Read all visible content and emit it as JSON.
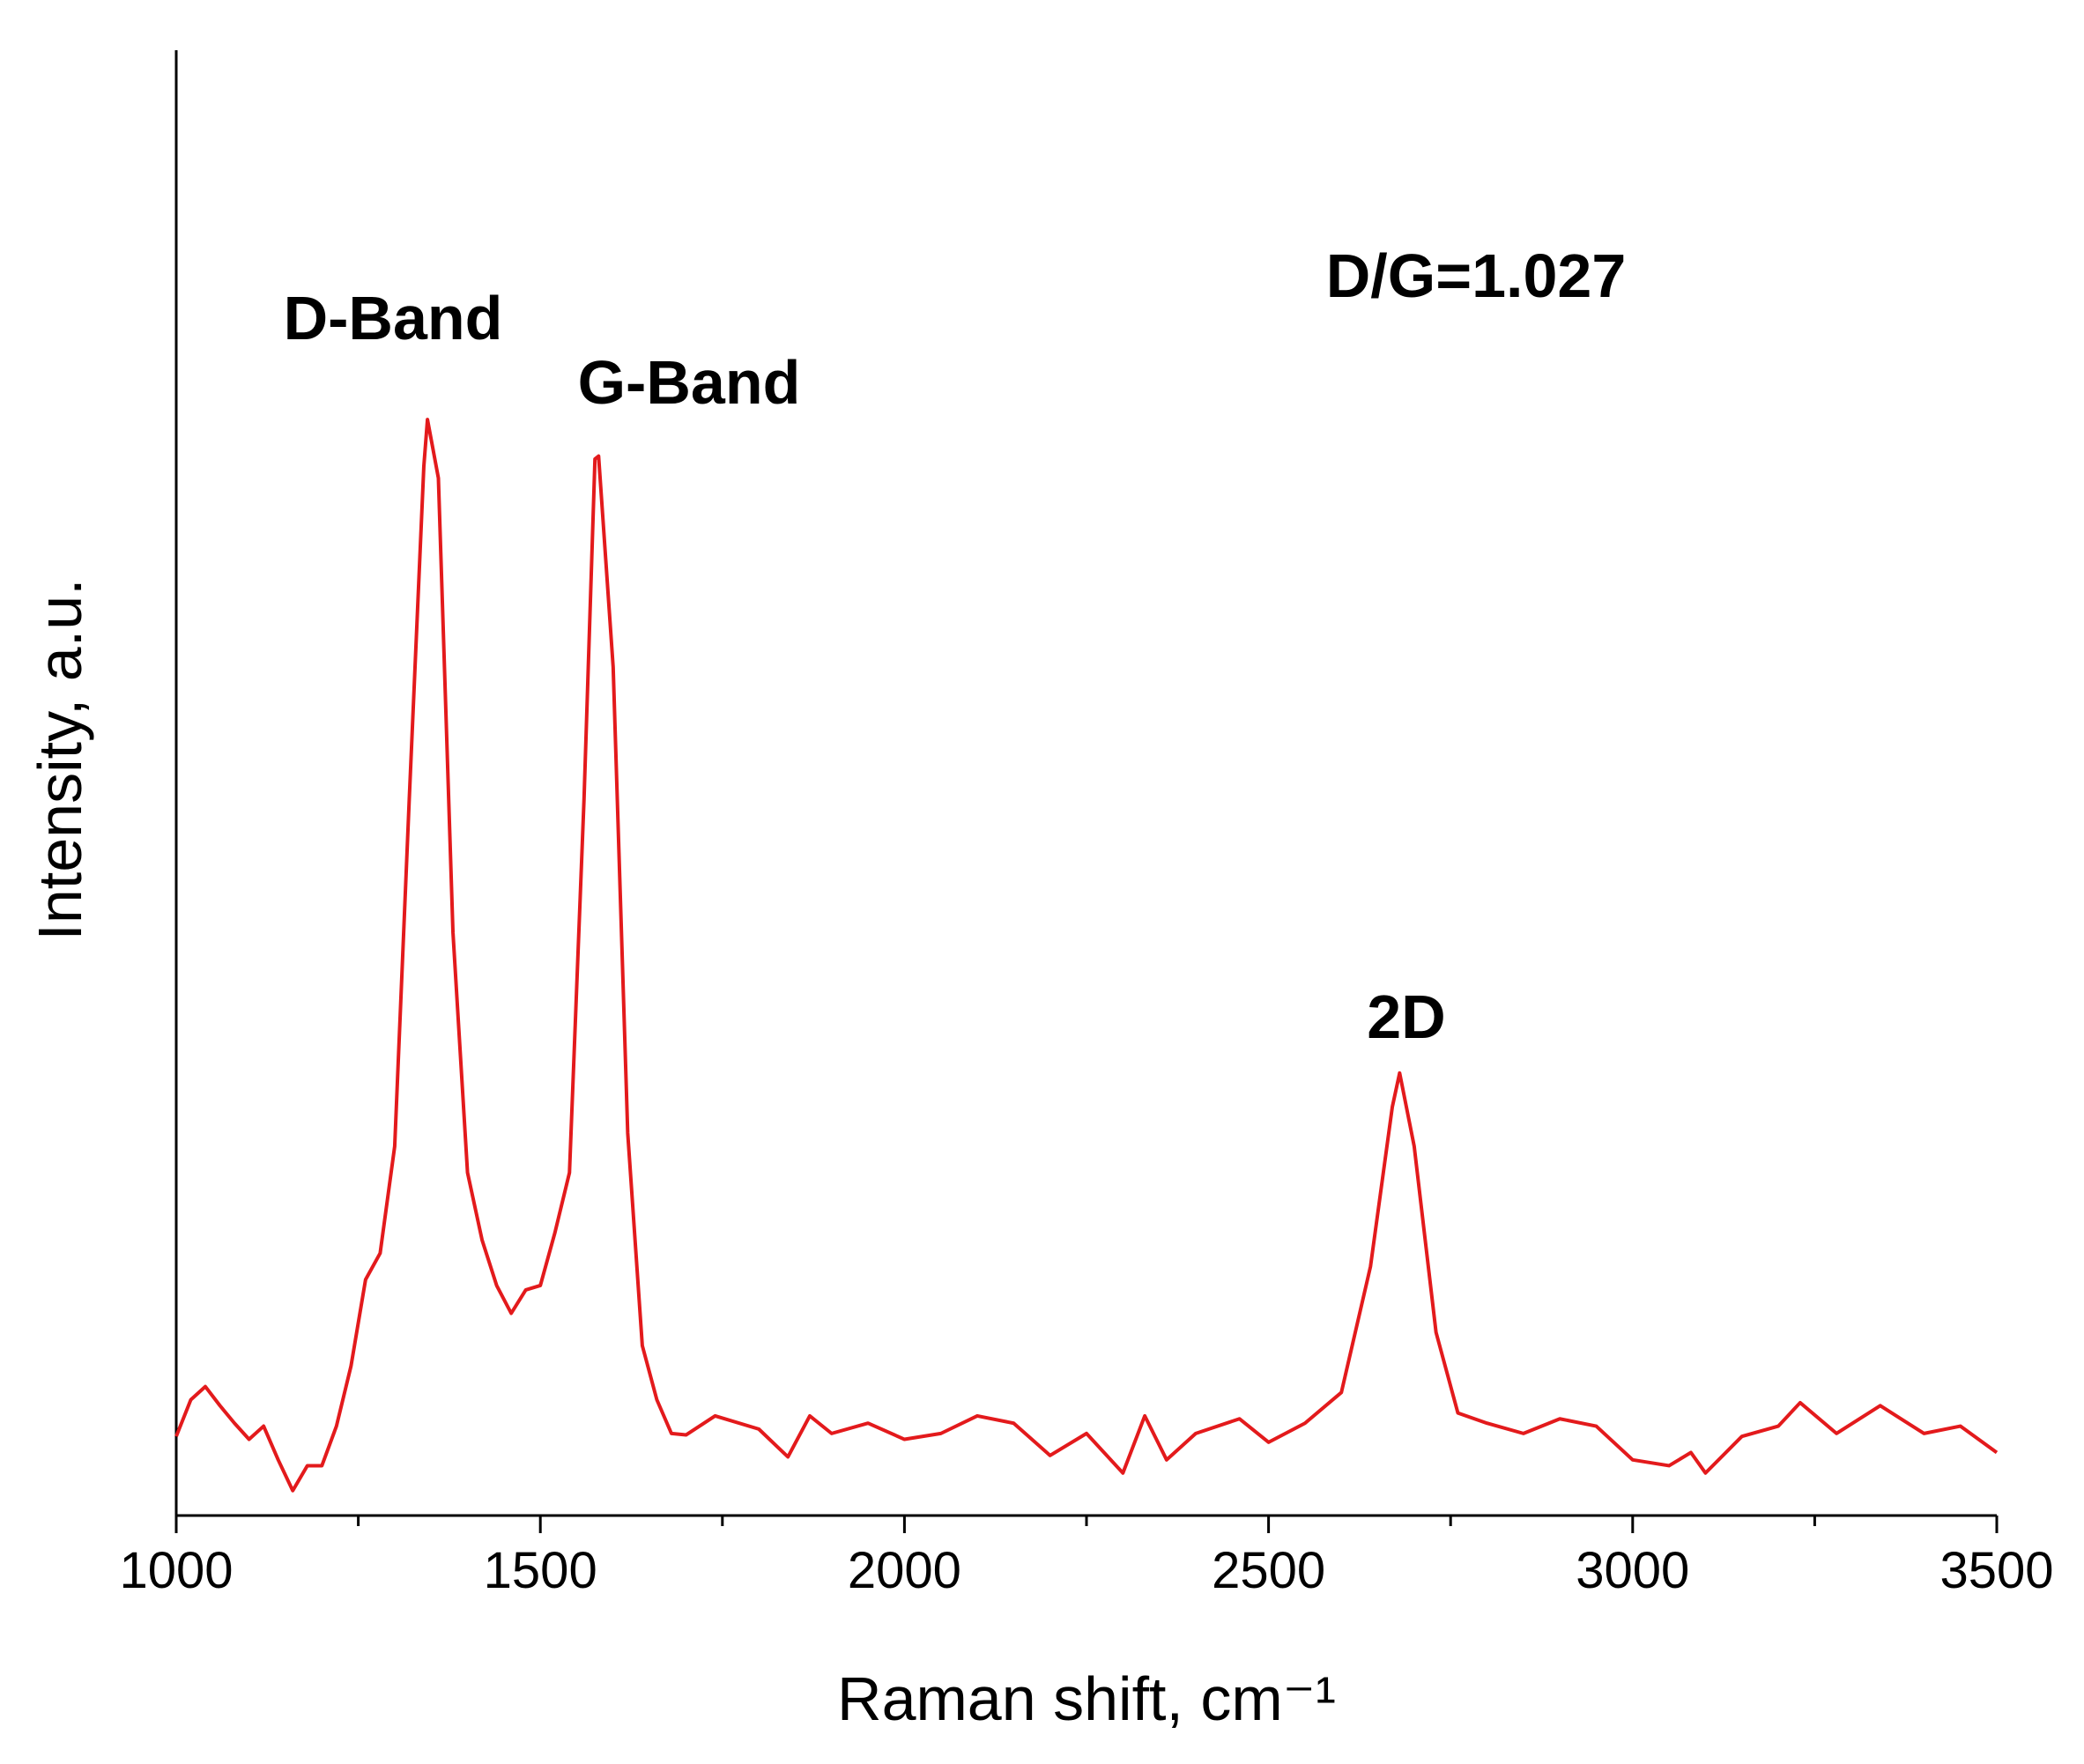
{
  "chart_data": {
    "type": "line",
    "x_label": "Raman shift, cm⁻¹",
    "y_label": "Intensity, a.u.",
    "annotations": [
      "D-Band",
      "G-Band",
      "2D",
      "D/G=1.027"
    ],
    "x": [
      1000,
      1020,
      1040,
      1060,
      1080,
      1100,
      1120,
      1140,
      1160,
      1180,
      1200,
      1220,
      1240,
      1260,
      1280,
      1300,
      1320,
      1340,
      1345,
      1360,
      1380,
      1400,
      1420,
      1440,
      1460,
      1480,
      1500,
      1520,
      1540,
      1560,
      1575,
      1580,
      1600,
      1620,
      1640,
      1660,
      1680,
      1700,
      1740,
      1800,
      1840,
      1870,
      1900,
      1950,
      2000,
      2050,
      2100,
      2150,
      2200,
      2250,
      2300,
      2330,
      2360,
      2400,
      2460,
      2500,
      2550,
      2600,
      2640,
      2670,
      2680,
      2700,
      2730,
      2760,
      2800,
      2850,
      2900,
      2950,
      3000,
      3050,
      3080,
      3100,
      3150,
      3200,
      3230,
      3280,
      3340,
      3400,
      3450,
      3500
    ],
    "series": [
      {
        "color": "#e31a1c",
        "values": [
          5.4,
          7.9,
          8.8,
          7.5,
          6.3,
          5.2,
          6.1,
          3.8,
          1.7,
          3.4,
          3.4,
          6.1,
          10.2,
          16.1,
          17.9,
          25.2,
          48.9,
          71.6,
          74.8,
          70.8,
          39.8,
          23.4,
          18.8,
          15.7,
          13.8,
          15.4,
          15.7,
          19.3,
          23.4,
          48.9,
          72.1,
          72.3,
          57.9,
          26.1,
          11.6,
          7.9,
          5.6,
          5.5,
          6.8,
          5.9,
          4.0,
          6.8,
          5.6,
          6.3,
          5.2,
          5.6,
          6.8,
          6.3,
          4.1,
          5.6,
          2.9,
          6.8,
          3.8,
          5.6,
          6.6,
          5.0,
          6.3,
          8.4,
          17.0,
          27.9,
          30.2,
          25.2,
          12.5,
          7.0,
          6.3,
          5.6,
          6.6,
          6.1,
          3.8,
          3.4,
          4.3,
          2.9,
          5.4,
          6.1,
          7.7,
          5.6,
          7.5,
          5.6,
          6.1,
          4.3
        ]
      }
    ],
    "xlim": [
      1000,
      3500
    ],
    "xticks": [
      1000,
      1500,
      2000,
      2500,
      3000,
      3500
    ],
    "xminorticks": [
      1250,
      1750,
      2250,
      2750,
      3250
    ],
    "ylim": [
      0,
      100
    ]
  }
}
